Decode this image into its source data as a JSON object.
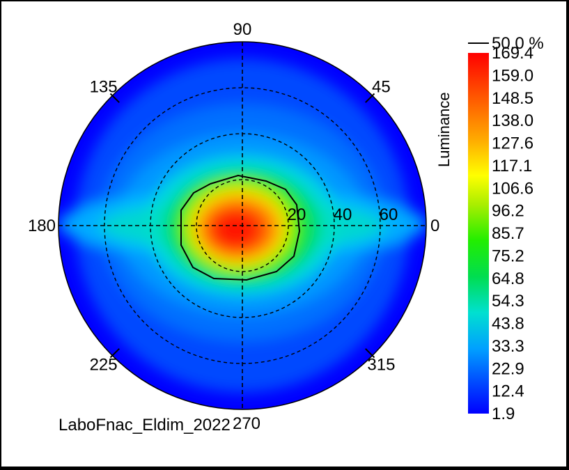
{
  "chart_data": {
    "type": "heatmap",
    "projection": "polar",
    "ylabel": "Luminance",
    "colorbar": {
      "min": 1.9,
      "max": 169.4,
      "ticks": [
        "169.4",
        "159.0",
        "148.5",
        "138.0",
        "127.6",
        "117.1",
        "106.6",
        "96.2",
        "85.7",
        "75.2",
        "64.8",
        "54.3",
        "43.8",
        "33.3",
        "22.9",
        "12.4",
        "1.9"
      ]
    },
    "angular_ticks": [
      {
        "angle": 0,
        "label": "0"
      },
      {
        "angle": 45,
        "label": "45"
      },
      {
        "angle": 90,
        "label": "90"
      },
      {
        "angle": 135,
        "label": "135"
      },
      {
        "angle": 180,
        "label": "180"
      },
      {
        "angle": 225,
        "label": "225"
      },
      {
        "angle": 270,
        "label": "270"
      },
      {
        "angle": 315,
        "label": "315"
      }
    ],
    "radial_ticks": [
      {
        "value": 20,
        "label": "20"
      },
      {
        "value": 40,
        "label": "40"
      },
      {
        "value": 60,
        "label": "60"
      }
    ],
    "r_max": 80,
    "contour": {
      "label": "50.0 %",
      "level_percent": 50.0,
      "color": "#000000"
    },
    "peak": {
      "value": 169.4,
      "theta": 180,
      "r": 1
    },
    "caption": "LaboFnac_Eldim_2022",
    "grid": true
  }
}
